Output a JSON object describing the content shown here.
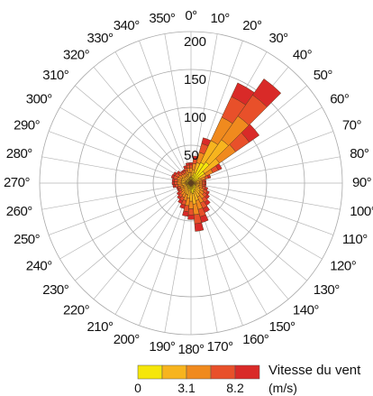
{
  "chart_data": {
    "type": "wind-rose",
    "title": "",
    "sector_width_deg": 10,
    "direction_labels": [
      "0°",
      "10°",
      "20°",
      "30°",
      "40°",
      "50°",
      "60°",
      "70°",
      "80°",
      "90°",
      "100°",
      "110°",
      "120°",
      "130°",
      "140°",
      "150°",
      "160°",
      "170°",
      "180°",
      "190°",
      "200°",
      "210°",
      "220°",
      "230°",
      "240°",
      "250°",
      "260°",
      "270°",
      "280°",
      "290°",
      "300°",
      "310°",
      "320°",
      "330°",
      "340°",
      "350°"
    ],
    "rings": [
      50,
      100,
      150,
      200
    ],
    "ring_labels": [
      "50",
      "100",
      "150",
      "200"
    ],
    "rmax": 200,
    "legend": {
      "title": "Vitesse du vent",
      "unit": "(m/s)",
      "tick_labels": [
        "0",
        "3.1",
        "8.2"
      ],
      "colors": [
        "#f5e60a",
        "#f7b41e",
        "#f08a1e",
        "#e8502a",
        "#d92a28"
      ]
    },
    "sectors": [
      {
        "direction": 0,
        "bands": [
          8,
          6,
          6,
          4,
          3
        ]
      },
      {
        "direction": 10,
        "bands": [
          10,
          8,
          8,
          6,
          4
        ]
      },
      {
        "direction": 20,
        "bands": [
          14,
          14,
          14,
          12,
          8
        ]
      },
      {
        "direction": 30,
        "bands": [
          30,
          32,
          34,
          30,
          20
        ]
      },
      {
        "direction": 40,
        "bands": [
          34,
          36,
          38,
          34,
          26
        ]
      },
      {
        "direction": 50,
        "bands": [
          22,
          24,
          26,
          22,
          16
        ]
      },
      {
        "direction": 60,
        "bands": [
          12,
          10,
          10,
          8,
          5
        ]
      },
      {
        "direction": 70,
        "bands": [
          8,
          6,
          6,
          4,
          3
        ]
      },
      {
        "direction": 80,
        "bands": [
          6,
          5,
          4,
          3,
          2
        ]
      },
      {
        "direction": 90,
        "bands": [
          6,
          5,
          4,
          3,
          2
        ]
      },
      {
        "direction": 100,
        "bands": [
          6,
          5,
          4,
          3,
          2
        ]
      },
      {
        "direction": 110,
        "bands": [
          6,
          5,
          5,
          4,
          3
        ]
      },
      {
        "direction": 120,
        "bands": [
          7,
          6,
          6,
          5,
          3
        ]
      },
      {
        "direction": 130,
        "bands": [
          8,
          7,
          6,
          5,
          4
        ]
      },
      {
        "direction": 140,
        "bands": [
          9,
          8,
          8,
          6,
          5
        ]
      },
      {
        "direction": 150,
        "bands": [
          10,
          10,
          9,
          8,
          6
        ]
      },
      {
        "direction": 160,
        "bands": [
          12,
          12,
          12,
          10,
          8
        ]
      },
      {
        "direction": 170,
        "bands": [
          14,
          14,
          14,
          12,
          10
        ]
      },
      {
        "direction": 180,
        "bands": [
          12,
          12,
          10,
          8,
          6
        ]
      },
      {
        "direction": 190,
        "bands": [
          10,
          10,
          10,
          8,
          6
        ]
      },
      {
        "direction": 200,
        "bands": [
          8,
          8,
          8,
          6,
          5
        ]
      },
      {
        "direction": 210,
        "bands": [
          8,
          7,
          6,
          5,
          4
        ]
      },
      {
        "direction": 220,
        "bands": [
          7,
          6,
          6,
          4,
          3
        ]
      },
      {
        "direction": 230,
        "bands": [
          6,
          5,
          5,
          4,
          3
        ]
      },
      {
        "direction": 240,
        "bands": [
          6,
          5,
          4,
          3,
          2
        ]
      },
      {
        "direction": 250,
        "bands": [
          6,
          5,
          4,
          3,
          2
        ]
      },
      {
        "direction": 260,
        "bands": [
          6,
          6,
          5,
          4,
          3
        ]
      },
      {
        "direction": 270,
        "bands": [
          7,
          6,
          5,
          4,
          3
        ]
      },
      {
        "direction": 280,
        "bands": [
          7,
          6,
          5,
          4,
          3
        ]
      },
      {
        "direction": 290,
        "bands": [
          7,
          6,
          6,
          5,
          3
        ]
      },
      {
        "direction": 300,
        "bands": [
          7,
          6,
          5,
          5,
          3
        ]
      },
      {
        "direction": 310,
        "bands": [
          6,
          5,
          5,
          4,
          3
        ]
      },
      {
        "direction": 320,
        "bands": [
          6,
          5,
          4,
          3,
          2
        ]
      },
      {
        "direction": 330,
        "bands": [
          6,
          5,
          4,
          3,
          2
        ]
      },
      {
        "direction": 340,
        "bands": [
          6,
          6,
          5,
          4,
          3
        ]
      },
      {
        "direction": 350,
        "bands": [
          8,
          6,
          6,
          4,
          3
        ]
      }
    ]
  }
}
